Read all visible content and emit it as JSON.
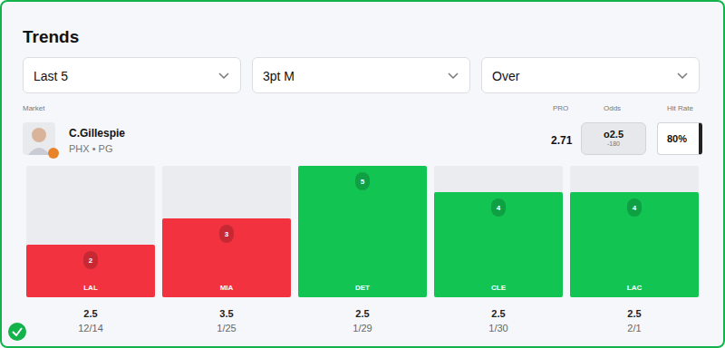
{
  "title": "Trends",
  "filters": [
    "Last 5",
    "3pt M",
    "Over"
  ],
  "market_label": "Market",
  "columns": {
    "pro": "PRO",
    "odds": "Odds",
    "hit_rate": "Hit Rate"
  },
  "player": {
    "name": "C.Gillespie",
    "subtitle": "PHX • PG",
    "pro": 2.71,
    "odds_line": "o2.5",
    "odds_price": -180,
    "hit_rate": "80%"
  },
  "chart_data": {
    "type": "bar",
    "categories": [
      "LAL",
      "MIA",
      "DET",
      "CLE",
      "LAC"
    ],
    "values": [
      2,
      3,
      5,
      4,
      4
    ],
    "lines": [
      2.5,
      3.5,
      2.5,
      2.5,
      2.5
    ],
    "dates": [
      "12/14",
      "1/25",
      "1/29",
      "1/30",
      "2/1"
    ],
    "colors": [
      "#f2333f",
      "#f2333f",
      "#12c452",
      "#12c452",
      "#12c452"
    ],
    "ylim": [
      0,
      5
    ],
    "data_labels": true,
    "tick_labels": false
  }
}
